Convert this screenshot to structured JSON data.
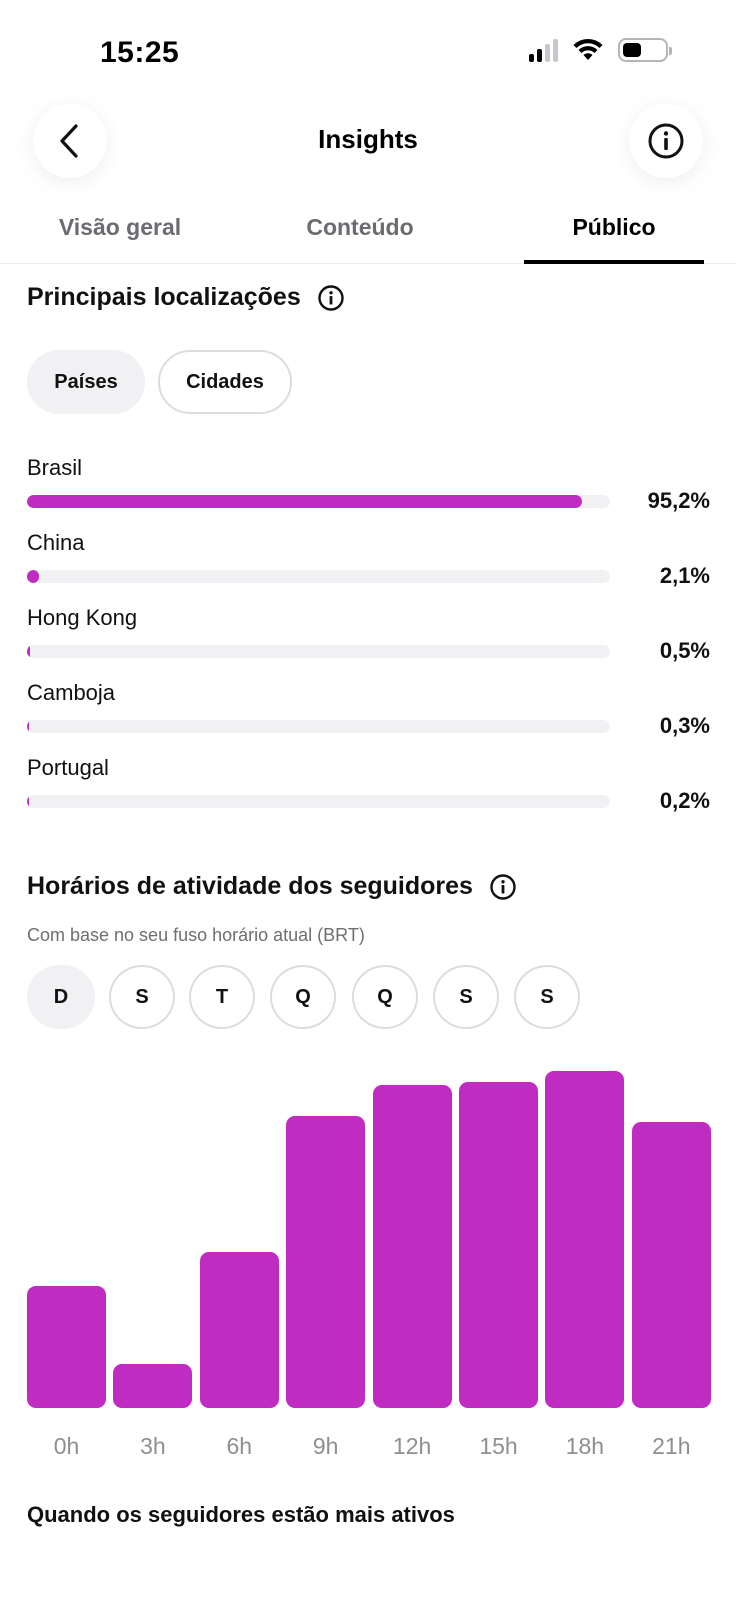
{
  "status_bar": {
    "time": "15:25"
  },
  "header": {
    "title": "Insights"
  },
  "tabs": [
    {
      "label": "Visão geral",
      "active": false
    },
    {
      "label": "Conteúdo",
      "active": false
    },
    {
      "label": "Público",
      "active": true
    }
  ],
  "locations": {
    "title": "Principais localizações",
    "filters": [
      {
        "label": "Países",
        "selected": true
      },
      {
        "label": "Cidades",
        "selected": false
      }
    ],
    "items": [
      {
        "name": "Brasil",
        "value_label": "95,2%",
        "percent": 95.2
      },
      {
        "name": "China",
        "value_label": "2,1%",
        "percent": 2.1
      },
      {
        "name": "Hong Kong",
        "value_label": "0,5%",
        "percent": 0.5
      },
      {
        "name": "Camboja",
        "value_label": "0,3%",
        "percent": 0.3
      },
      {
        "name": "Portugal",
        "value_label": "0,2%",
        "percent": 0.2
      }
    ]
  },
  "activity": {
    "title": "Horários de atividade dos seguidores",
    "subtitle": "Com base no seu fuso horário atual (BRT)",
    "days": [
      {
        "label": "D",
        "selected": true
      },
      {
        "label": "S",
        "selected": false
      },
      {
        "label": "T",
        "selected": false
      },
      {
        "label": "Q",
        "selected": false
      },
      {
        "label": "Q",
        "selected": false
      },
      {
        "label": "S",
        "selected": false
      },
      {
        "label": "S",
        "selected": false
      }
    ]
  },
  "chart_data": {
    "type": "bar",
    "categories": [
      "0h",
      "3h",
      "6h",
      "9h",
      "12h",
      "15h",
      "18h",
      "21h"
    ],
    "values": [
      36,
      13,
      46,
      86,
      95,
      96,
      99,
      84
    ],
    "ylim": [
      0,
      100
    ],
    "color": "#c02bc1"
  },
  "bottom": {
    "title": "Quando os seguidores estão mais ativos"
  }
}
